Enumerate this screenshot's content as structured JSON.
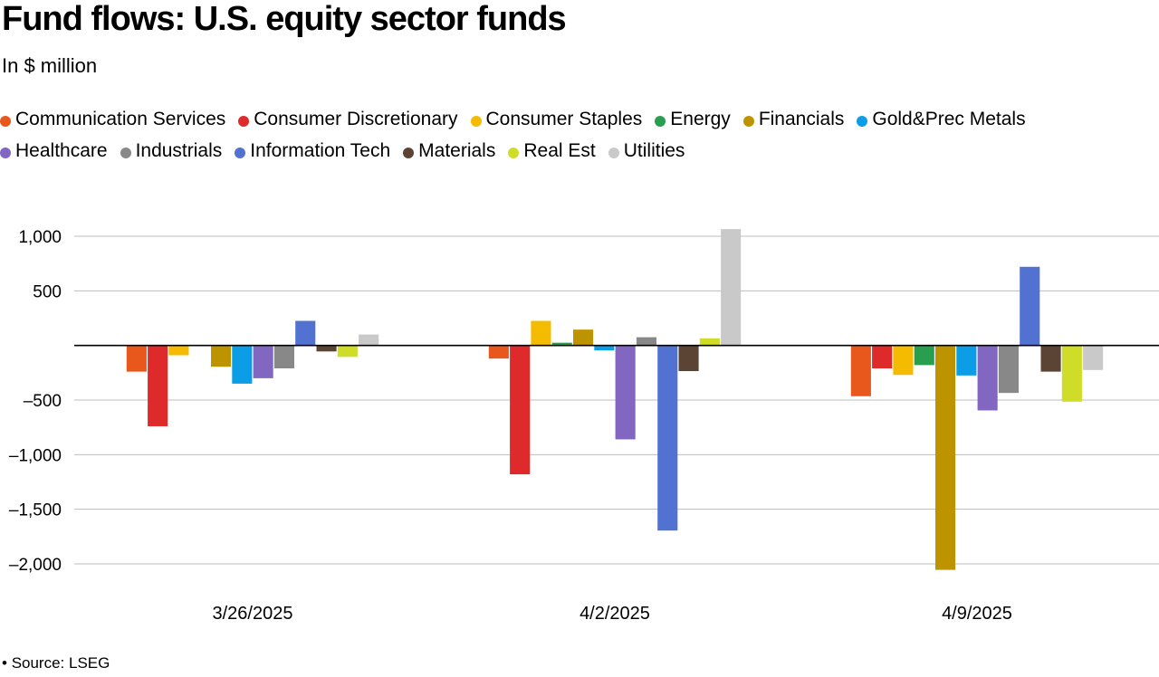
{
  "title": "Fund flows: U.S. equity sector funds",
  "subtitle": "In $ million",
  "source": "Source: LSEG",
  "source_bullet": "•",
  "chart_data": {
    "type": "bar",
    "categories": [
      "3/26/2025",
      "4/2/2025",
      "4/9/2025"
    ],
    "ylim": [
      -2000,
      1000
    ],
    "yticks": [
      {
        "value": 1000,
        "label": "1,000"
      },
      {
        "value": 500,
        "label": "500"
      },
      {
        "value": 0,
        "label": ""
      },
      {
        "value": -500,
        "label": "-500"
      },
      {
        "value": -1000,
        "label": "-1,000"
      },
      {
        "value": -1500,
        "label": "-1,500"
      },
      {
        "value": -2000,
        "label": "-2,000"
      }
    ],
    "grid": true,
    "legend_position": "top",
    "series": [
      {
        "name": "Communication Services",
        "color": "#e8571c",
        "values": [
          -240,
          -120,
          -465
        ]
      },
      {
        "name": "Consumer Discretionary",
        "color": "#de2a2a",
        "values": [
          -740,
          -1180,
          -210
        ]
      },
      {
        "name": "Consumer Staples",
        "color": "#f4bb00",
        "values": [
          -90,
          225,
          -270
        ]
      },
      {
        "name": "Energy",
        "color": "#2a9e4f",
        "values": [
          0,
          25,
          -180
        ]
      },
      {
        "name": "Financials",
        "color": "#be9300",
        "values": [
          -195,
          145,
          -2055
        ]
      },
      {
        "name": "Gold&Prec Metals",
        "color": "#0b9ee6",
        "values": [
          -350,
          -45,
          -275
        ]
      },
      {
        "name": "Healthcare",
        "color": "#8166c2",
        "values": [
          -300,
          -860,
          -595
        ]
      },
      {
        "name": "Industrials",
        "color": "#888888",
        "values": [
          -210,
          75,
          -435
        ]
      },
      {
        "name": "Information Tech",
        "color": "#5172d0",
        "values": [
          225,
          -1695,
          720
        ]
      },
      {
        "name": "Materials",
        "color": "#5c4434",
        "values": [
          -55,
          -235,
          -240
        ]
      },
      {
        "name": "Real Est",
        "color": "#d0dd28",
        "values": [
          -105,
          65,
          -515
        ]
      },
      {
        "name": "Utilities",
        "color": "#c9c9c9",
        "values": [
          100,
          1065,
          -225
        ]
      }
    ]
  }
}
